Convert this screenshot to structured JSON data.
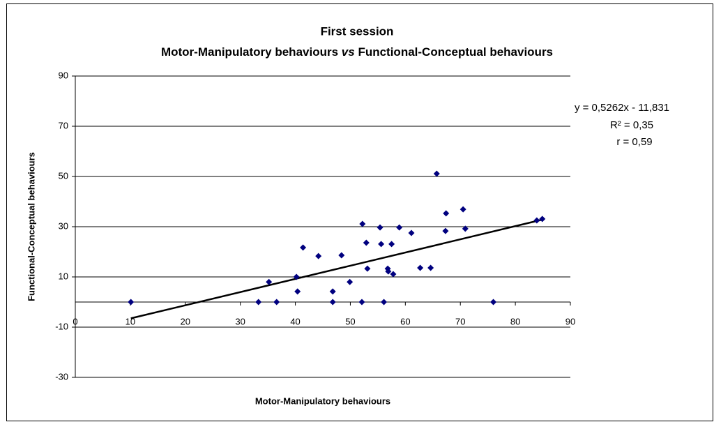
{
  "chart_data": {
    "type": "scatter",
    "title": "First session",
    "subtitle": [
      "Motor-Manipulatory behaviours",
      "vs",
      "Functional-Conceptual behaviours"
    ],
    "x_label": "Motor-Manipulatory behaviours",
    "y_label": "Functional-Conceptual behaviours",
    "annotations": [
      "y = 0,5262x - 11,831",
      "R² = 0,35",
      "r = 0,59"
    ],
    "color": "#00007f",
    "x": [
      10.1,
      35.2,
      33.3,
      36.6,
      40.2,
      40.4,
      41.4,
      44.2,
      46.8,
      46.8,
      48.4,
      49.9,
      52.2,
      52.1,
      52.9,
      53.1,
      55.4,
      55.6,
      56.1,
      56.8,
      56.9,
      57.5,
      57.8,
      58.9,
      61.1,
      62.7,
      64.6,
      65.7,
      67.4,
      67.3,
      70.5,
      70.9,
      76.0,
      83.9,
      84.9
    ],
    "values": [
      0,
      8,
      0,
      0,
      10,
      4.2,
      21.7,
      18.3,
      4.2,
      0,
      18.6,
      8,
      31.1,
      0,
      23.6,
      13.3,
      29.7,
      23.1,
      0,
      13.3,
      12.2,
      23.1,
      11.1,
      29.7,
      27.5,
      13.6,
      13.6,
      51.1,
      35.3,
      28.3,
      36.9,
      29.2,
      0,
      32.5,
      33.1
    ],
    "trendline": {
      "x": [
        10.1,
        84.9
      ],
      "y": [
        -6.5,
        32.8
      ],
      "color": "#000000"
    },
    "xlim": [
      0,
      90
    ],
    "xticks": [
      0,
      10,
      20,
      30,
      40,
      50,
      60,
      70,
      80,
      90
    ],
    "ylim": [
      -30,
      90
    ],
    "yticks": [
      -30,
      -10,
      10,
      30,
      50,
      70,
      90
    ],
    "grid": true
  }
}
